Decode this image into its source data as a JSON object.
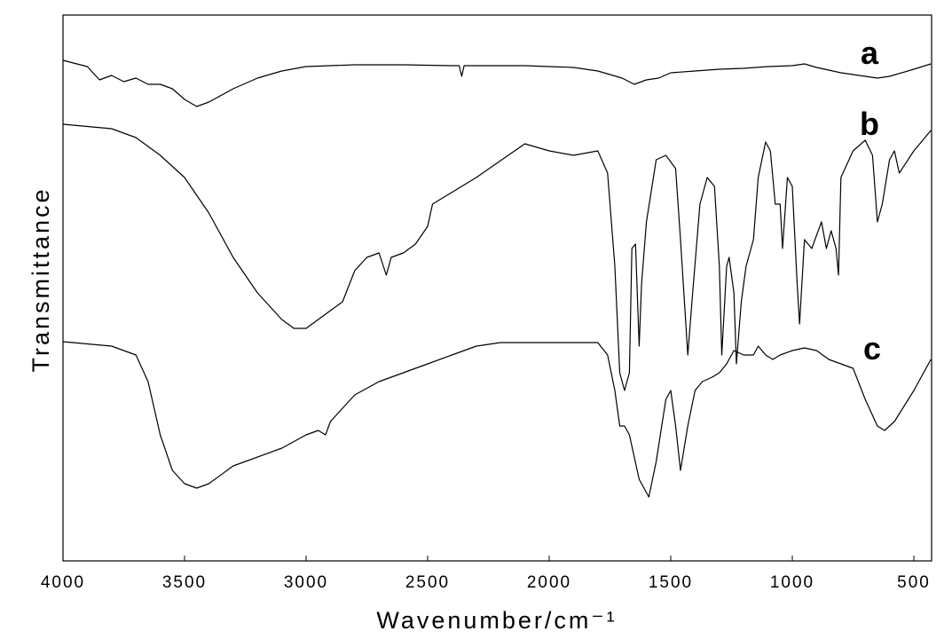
{
  "chart_data": {
    "type": "line",
    "xlabel": "Wavenumber/cm⁻¹",
    "ylabel": "Transmittance",
    "xlim": [
      4000,
      427
    ],
    "ylim": [
      0,
      615
    ],
    "xticks": [
      4000,
      3500,
      3000,
      2500,
      2000,
      1500,
      1000,
      500
    ],
    "series": [
      {
        "name": "a",
        "color": "#000000",
        "x": [
          4000,
          3900,
          3850,
          3800,
          3750,
          3700,
          3650,
          3600,
          3550,
          3500,
          3450,
          3400,
          3300,
          3200,
          3100,
          3000,
          2900,
          2800,
          2600,
          2400,
          2370,
          2360,
          2350,
          2300,
          2100,
          1900,
          1800,
          1700,
          1650,
          1600,
          1550,
          1500,
          1400,
          1300,
          1200,
          1100,
          1000,
          950,
          900,
          800,
          700,
          650,
          600,
          500,
          430
        ],
        "values": [
          564,
          557,
          542,
          547,
          540,
          544,
          537,
          537,
          532,
          520,
          512,
          517,
          532,
          544,
          552,
          557,
          558,
          559,
          559,
          558,
          558,
          546,
          558,
          558,
          558,
          556,
          552,
          544,
          537,
          542,
          544,
          550,
          552,
          554,
          555,
          557,
          558,
          560,
          556,
          550,
          546,
          544,
          546,
          554,
          560
        ]
      },
      {
        "name": "b",
        "color": "#000000",
        "x": [
          4000,
          3800,
          3700,
          3600,
          3500,
          3400,
          3300,
          3200,
          3100,
          3050,
          3000,
          2950,
          2900,
          2850,
          2800,
          2750,
          2700,
          2670,
          2650,
          2600,
          2550,
          2500,
          2480,
          2300,
          2100,
          2000,
          1900,
          1800,
          1760,
          1730,
          1710,
          1690,
          1670,
          1660,
          1645,
          1630,
          1620,
          1600,
          1560,
          1520,
          1480,
          1460,
          1430,
          1410,
          1380,
          1350,
          1320,
          1300,
          1290,
          1270,
          1260,
          1240,
          1230,
          1210,
          1190,
          1160,
          1140,
          1110,
          1090,
          1070,
          1050,
          1040,
          1020,
          1000,
          980,
          970,
          950,
          920,
          880,
          860,
          840,
          820,
          810,
          800,
          750,
          700,
          670,
          650,
          630,
          600,
          580,
          560,
          500,
          430
        ],
        "values": [
          492,
          487,
          477,
          457,
          432,
          392,
          342,
          302,
          272,
          262,
          262,
          272,
          282,
          292,
          327,
          342,
          347,
          322,
          342,
          347,
          357,
          377,
          402,
          432,
          470,
          462,
          457,
          462,
          437,
          332,
          212,
          192,
          212,
          352,
          357,
          242,
          312,
          382,
          452,
          457,
          442,
          362,
          232,
          302,
          402,
          432,
          422,
          332,
          232,
          332,
          342,
          302,
          222,
          292,
          332,
          362,
          432,
          472,
          462,
          402,
          402,
          352,
          432,
          422,
          312,
          267,
          362,
          352,
          382,
          352,
          372,
          352,
          322,
          432,
          462,
          474,
          457,
          382,
          402,
          452,
          462,
          437,
          462,
          485
        ]
      },
      {
        "name": "c",
        "color": "#000000",
        "x": [
          4000,
          3800,
          3700,
          3650,
          3600,
          3550,
          3500,
          3450,
          3400,
          3300,
          3100,
          3000,
          2950,
          2920,
          2900,
          2850,
          2800,
          2700,
          2500,
          2400,
          2300,
          2200,
          1800,
          1760,
          1730,
          1710,
          1690,
          1670,
          1630,
          1590,
          1560,
          1520,
          1500,
          1480,
          1460,
          1430,
          1400,
          1370,
          1330,
          1300,
          1270,
          1240,
          1200,
          1160,
          1140,
          1110,
          1080,
          1050,
          1000,
          950,
          900,
          850,
          800,
          750,
          700,
          650,
          620,
          580,
          500,
          430
        ],
        "values": [
          247,
          242,
          232,
          202,
          142,
          102,
          87,
          82,
          87,
          107,
          127,
          142,
          147,
          142,
          157,
          172,
          187,
          202,
          222,
          232,
          242,
          246,
          246,
          232,
          192,
          152,
          152,
          142,
          92,
          72,
          112,
          182,
          192,
          152,
          102,
          152,
          192,
          202,
          207,
          212,
          222,
          237,
          232,
          232,
          242,
          232,
          227,
          232,
          237,
          240,
          237,
          227,
          222,
          217,
          182,
          152,
          147,
          157,
          192,
          227
        ]
      }
    ]
  }
}
